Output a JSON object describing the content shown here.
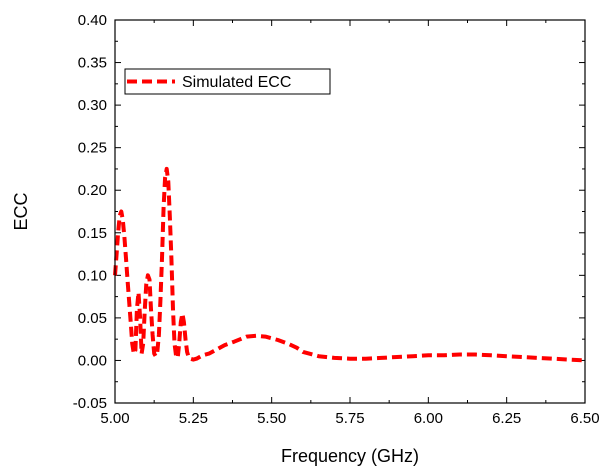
{
  "chart_data": {
    "type": "line",
    "title": "",
    "xlabel": "Frequency (GHz)",
    "ylabel": "ECC",
    "xlim": [
      5.0,
      6.5
    ],
    "ylim": [
      -0.05,
      0.4
    ],
    "x_ticks": [
      "5.00",
      "5.25",
      "5.50",
      "5.75",
      "6.00",
      "6.25",
      "6.50"
    ],
    "y_ticks": [
      "-0.05",
      "0.00",
      "0.05",
      "0.10",
      "0.15",
      "0.20",
      "0.25",
      "0.30",
      "0.35",
      "0.40"
    ],
    "grid": false,
    "legend_position": "top-left",
    "line_style": "dashed",
    "series": [
      {
        "name": "Simulated ECC",
        "color": "#ff0000",
        "x": [
          5.0,
          5.005,
          5.01,
          5.015,
          5.02,
          5.025,
          5.03,
          5.035,
          5.04,
          5.045,
          5.05,
          5.055,
          5.06,
          5.065,
          5.07,
          5.075,
          5.08,
          5.085,
          5.09,
          5.095,
          5.1,
          5.105,
          5.11,
          5.115,
          5.12,
          5.125,
          5.13,
          5.135,
          5.14,
          5.145,
          5.15,
          5.155,
          5.16,
          5.165,
          5.17,
          5.175,
          5.18,
          5.185,
          5.19,
          5.195,
          5.2,
          5.205,
          5.21,
          5.215,
          5.22,
          5.225,
          5.23,
          5.235,
          5.24,
          5.25,
          5.26,
          5.27,
          5.28,
          5.3,
          5.32,
          5.35,
          5.38,
          5.4,
          5.42,
          5.45,
          5.48,
          5.5,
          5.52,
          5.55,
          5.58,
          5.6,
          5.65,
          5.7,
          5.75,
          5.8,
          5.85,
          5.9,
          5.95,
          6.0,
          6.05,
          6.1,
          6.15,
          6.2,
          6.25,
          6.3,
          6.35,
          6.4,
          6.45,
          6.5
        ],
        "y": [
          0.1,
          0.125,
          0.15,
          0.17,
          0.175,
          0.165,
          0.145,
          0.12,
          0.095,
          0.07,
          0.045,
          0.02,
          0.008,
          0.012,
          0.06,
          0.08,
          0.05,
          0.008,
          0.02,
          0.06,
          0.09,
          0.1,
          0.095,
          0.06,
          0.03,
          0.008,
          0.005,
          0.01,
          0.03,
          0.07,
          0.12,
          0.18,
          0.215,
          0.225,
          0.21,
          0.17,
          0.12,
          0.06,
          0.02,
          0.005,
          0.003,
          0.02,
          0.045,
          0.055,
          0.045,
          0.025,
          0.01,
          0.004,
          0.002,
          0.001,
          0.002,
          0.004,
          0.006,
          0.008,
          0.012,
          0.018,
          0.022,
          0.025,
          0.028,
          0.029,
          0.028,
          0.026,
          0.024,
          0.02,
          0.015,
          0.01,
          0.005,
          0.003,
          0.002,
          0.002,
          0.003,
          0.004,
          0.005,
          0.006,
          0.006,
          0.007,
          0.007,
          0.006,
          0.005,
          0.004,
          0.003,
          0.002,
          0.001,
          0.0
        ]
      }
    ]
  }
}
